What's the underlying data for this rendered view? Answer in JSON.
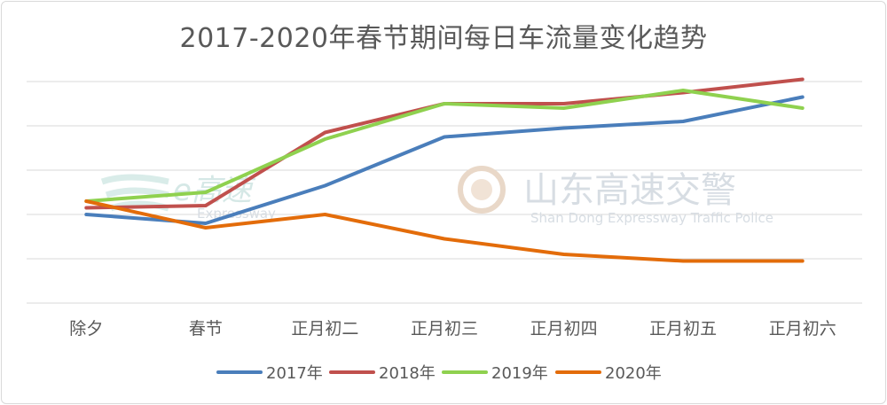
{
  "chart_data": {
    "type": "line",
    "title": "2017-2020年春节期间每日车流量变化趋势",
    "categories": [
      "除夕",
      "春节",
      "正月初二",
      "正月初三",
      "正月初四",
      "正月初五",
      "正月初六"
    ],
    "ylim": [
      0,
      100
    ],
    "grid": true,
    "legend_position": "bottom",
    "series": [
      {
        "name": "2017年",
        "color": "#4a7ebb",
        "values": [
          40,
          36,
          53,
          75,
          79,
          82,
          93
        ]
      },
      {
        "name": "2018年",
        "color": "#c0504d",
        "values": [
          43,
          44,
          77,
          90,
          90,
          95,
          101
        ]
      },
      {
        "name": "2019年",
        "color": "#8fd14f",
        "values": [
          46,
          50,
          74,
          90,
          88,
          96,
          88
        ]
      },
      {
        "name": "2020年",
        "color": "#e36c0a",
        "values": [
          46,
          34,
          40,
          29,
          22,
          19,
          19
        ]
      }
    ]
  },
  "watermark": {
    "left_brand": "e高速",
    "left_sub": "Expressway",
    "right_brand": "山东高速交警",
    "right_sub": "Shan Dong Expressway Traffic Police"
  }
}
